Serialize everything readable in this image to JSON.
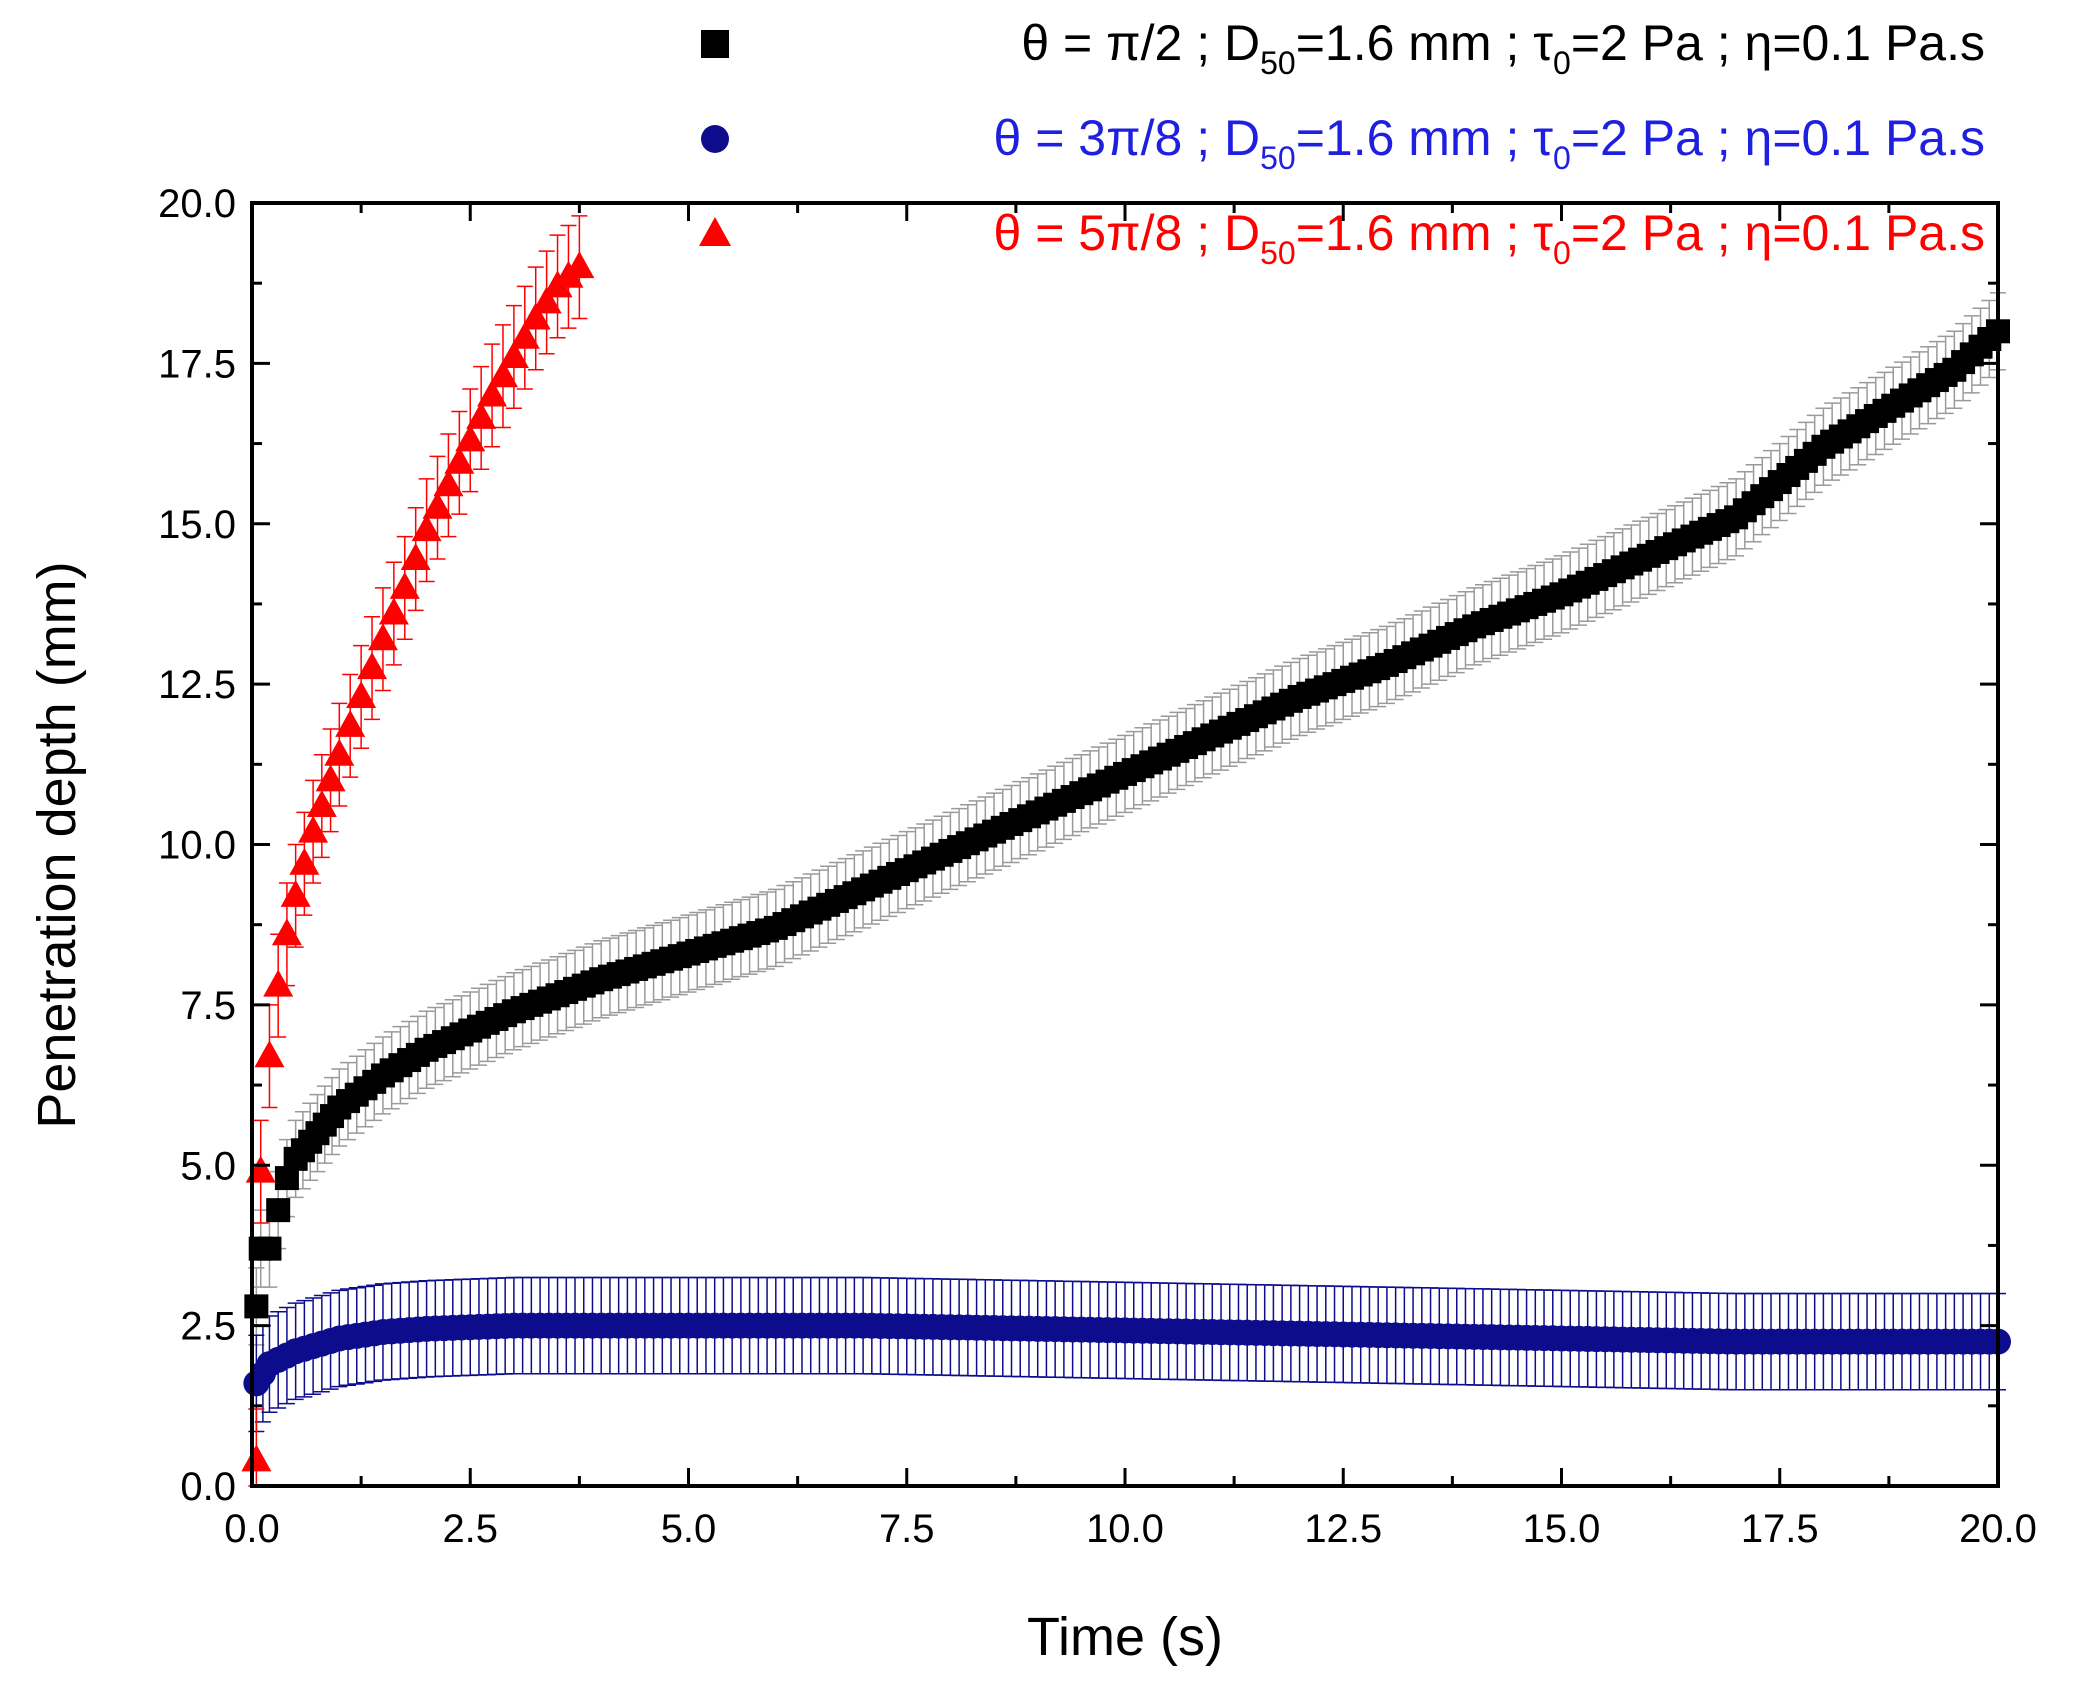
{
  "chart_data": {
    "type": "scatter",
    "xlabel": "Time (s)",
    "ylabel": "Penetration depth (mm)",
    "xlim": [
      0,
      20
    ],
    "ylim": [
      0,
      20
    ],
    "x_ticks": [
      "0.0",
      "2.5",
      "5.0",
      "7.5",
      "10.0",
      "12.5",
      "15.0",
      "17.5",
      "20.0"
    ],
    "y_ticks": [
      "0.0",
      "2.5",
      "5.0",
      "7.5",
      "10.0",
      "12.5",
      "15.0",
      "17.5",
      "20.0"
    ],
    "grid": false,
    "legend_placement": "top-right",
    "series": [
      {
        "name": "θ = π/2 ; D50=1.6 mm ; τ0=2 Pa ; η=0.1 Pa.s",
        "legend": {
          "theta": "θ = π/2   ; D",
          "d_sub": "50",
          "d_val": "=1.6 mm ; τ",
          "tau_sub": "0",
          "rest": "=2 Pa ; η=0.1 Pa.s"
        },
        "marker": "square",
        "color": "#000000",
        "error_color": "#9a9a9a",
        "x": [
          0.05,
          0.1,
          0.2,
          0.3,
          0.4,
          0.5,
          0.75,
          1.0,
          1.5,
          2.0,
          2.5,
          3.0,
          4.0,
          5.0,
          6.0,
          7.0,
          8.0,
          9.0,
          10.0,
          11.0,
          12.0,
          13.0,
          14.0,
          15.0,
          16.0,
          17.0,
          18.0,
          19.0,
          19.5,
          20.0
        ],
        "y": [
          2.8,
          3.7,
          3.7,
          4.3,
          4.8,
          5.1,
          5.5,
          5.9,
          6.4,
          6.8,
          7.1,
          7.4,
          7.9,
          8.3,
          8.7,
          9.3,
          9.9,
          10.5,
          11.1,
          11.7,
          12.3,
          12.8,
          13.4,
          13.9,
          14.5,
          15.1,
          16.2,
          17.0,
          17.4,
          18.0
        ],
        "error": 0.6
      },
      {
        "name": "θ = 3π/8 ; D50=1.6 mm ; τ0=2 Pa ; η=0.1 Pa.s",
        "legend": {
          "theta": "θ = 3π/8 ; D",
          "d_sub": "50",
          "d_val": "=1.6 mm ; τ",
          "tau_sub": "0",
          "rest": "=2 Pa ; η=0.1 Pa.s"
        },
        "marker": "circle",
        "color": "#0c0c8c",
        "error_color": "#0c0c8c",
        "x": [
          0.05,
          0.2,
          0.5,
          1.0,
          1.5,
          2.0,
          3.0,
          5.0,
          7.0,
          9.0,
          11.0,
          13.0,
          15.0,
          17.0,
          19.0,
          20.0
        ],
        "y": [
          1.6,
          1.9,
          2.1,
          2.3,
          2.4,
          2.45,
          2.5,
          2.5,
          2.5,
          2.45,
          2.4,
          2.35,
          2.3,
          2.25,
          2.25,
          2.25
        ],
        "error": 0.75
      },
      {
        "name": "θ = 5π/8 ; D50=1.6 mm ; τ0=2 Pa ; η=0.1 Pa.s",
        "legend": {
          "theta": "θ = 5π/8 ; D",
          "d_sub": "50",
          "d_val": "=1.6 mm ; τ",
          "tau_sub": "0",
          "rest": "=2 Pa ; η=0.1 Pa.s"
        },
        "marker": "triangle",
        "color": "#ff0000",
        "error_color": "#ff0000",
        "x": [
          0.05,
          0.1,
          0.2,
          0.3,
          0.4,
          0.5,
          0.6,
          0.7,
          0.8,
          0.9,
          1.0,
          1.25,
          1.5,
          1.75,
          2.0,
          2.25,
          2.5,
          2.75,
          3.0,
          3.25,
          3.5,
          3.75
        ],
        "y": [
          0.4,
          4.9,
          6.7,
          7.8,
          8.6,
          9.2,
          9.7,
          10.2,
          10.6,
          11.0,
          11.4,
          12.3,
          13.2,
          14.0,
          14.9,
          15.6,
          16.3,
          17.0,
          17.6,
          18.2,
          18.7,
          19.0
        ],
        "error": 0.8
      }
    ]
  }
}
